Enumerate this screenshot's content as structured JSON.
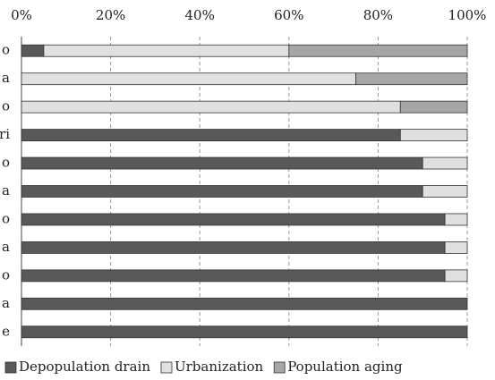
{
  "chart_data": {
    "type": "stacked_barh",
    "categories": [
      "o",
      "a",
      "o",
      "ri",
      "o",
      "a",
      "o",
      "a",
      "o",
      "a",
      "e"
    ],
    "series": [
      {
        "name": "Depopulation drain",
        "color": "#595959",
        "values": [
          5,
          0,
          0,
          85,
          90,
          90,
          95,
          95,
          95,
          100,
          100
        ]
      },
      {
        "name": "Urbanization",
        "color": "#e0e0e0",
        "values": [
          55,
          75,
          85,
          15,
          10,
          10,
          5,
          5,
          5,
          0,
          0
        ]
      },
      {
        "name": "Population aging",
        "color": "#a6a6a6",
        "values": [
          40,
          25,
          15,
          0,
          0,
          0,
          0,
          0,
          0,
          0,
          0
        ]
      }
    ],
    "xlim": [
      0,
      100
    ],
    "xticks": [
      {
        "value": 0,
        "label": "0%"
      },
      {
        "value": 20,
        "label": "20%"
      },
      {
        "value": 40,
        "label": "40%"
      },
      {
        "value": 60,
        "label": "60%"
      },
      {
        "value": 80,
        "label": "80%"
      },
      {
        "value": 100,
        "label": "100%"
      }
    ],
    "grid": true,
    "legend": "bottom"
  }
}
